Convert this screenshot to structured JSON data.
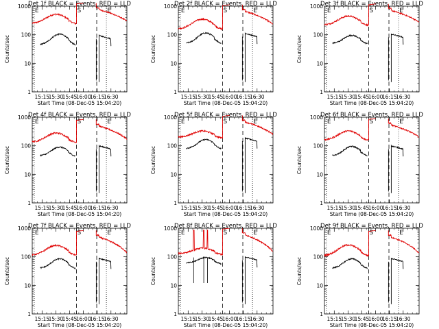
{
  "chart_data": {
    "type": "line",
    "title_template": "Det {det} BLACK = Events, RED = LLD",
    "xlabel": "Start Time (08-Dec-05 15:04:20)",
    "ylabel": "Counts/sec",
    "yscale": "log",
    "ylim": [
      1,
      1000
    ],
    "y_ticks": [
      "1",
      "10",
      "100",
      "1000"
    ],
    "x_ticks": [
      "15:15",
      "15:30",
      "15:45",
      "16:00",
      "16:15",
      "16:30"
    ],
    "x_tick_minutes": [
      15,
      30,
      45,
      60,
      75,
      90
    ],
    "xlim_minutes": [
      4.33,
      107.33
    ],
    "markers": [
      {
        "label": "E",
        "minute": 6.5,
        "style": "dotted"
      },
      {
        "label": "S",
        "minute": 52.5,
        "style": "dashed"
      },
      {
        "label": "",
        "minute": 74.5,
        "style": "dashed"
      },
      {
        "label": "E",
        "minute": 85,
        "style": "dotted"
      }
    ],
    "series_colors": {
      "events": "#000000",
      "lld": "#e00000"
    },
    "panels": [
      {
        "det": "1f",
        "lld_base": 250,
        "lld_peak": 520,
        "lld_post": 800,
        "lld_end": 300,
        "ev_base": 45,
        "ev_peak": 105,
        "ev_post": 80,
        "spikes": []
      },
      {
        "det": "2f",
        "lld_base": 160,
        "lld_peak": 350,
        "lld_post": 700,
        "lld_end": 230,
        "ev_base": 50,
        "ev_peak": 115,
        "ev_post": 95,
        "spikes": []
      },
      {
        "det": "3f",
        "lld_base": 220,
        "lld_peak": 450,
        "lld_post": 750,
        "lld_end": 270,
        "ev_base": 50,
        "ev_peak": 95,
        "ev_post": 90,
        "spikes": []
      },
      {
        "det": "4f",
        "lld_base": 135,
        "lld_peak": 280,
        "lld_post": 520,
        "lld_end": 170,
        "ev_base": 45,
        "ev_peak": 90,
        "ev_post": 85,
        "spikes": []
      },
      {
        "det": "5f",
        "lld_base": 200,
        "lld_peak": 330,
        "lld_post": 720,
        "lld_end": 250,
        "ev_base": 80,
        "ev_peak": 165,
        "ev_post": 160,
        "spikes": []
      },
      {
        "det": "6f",
        "lld_base": 160,
        "lld_peak": 330,
        "lld_post": 560,
        "lld_end": 200,
        "ev_base": 45,
        "ev_peak": 95,
        "ev_post": 85,
        "spikes": []
      },
      {
        "det": "7f",
        "lld_base": 115,
        "lld_peak": 250,
        "lld_post": 520,
        "lld_end": 140,
        "ev_base": 40,
        "ev_peak": 85,
        "ev_post": 75,
        "spikes": []
      },
      {
        "det": "8f",
        "lld_base": 130,
        "lld_peak": 200,
        "lld_post": 620,
        "lld_end": 150,
        "ev_base": 60,
        "ev_peak": 95,
        "ev_post": 85,
        "spikes": [
          21,
          32,
          36
        ]
      },
      {
        "det": "9f",
        "lld_base": 110,
        "lld_peak": 260,
        "lld_post": 520,
        "lld_end": 130,
        "ev_base": 40,
        "ev_peak": 85,
        "ev_post": 75,
        "spikes": []
      }
    ]
  }
}
